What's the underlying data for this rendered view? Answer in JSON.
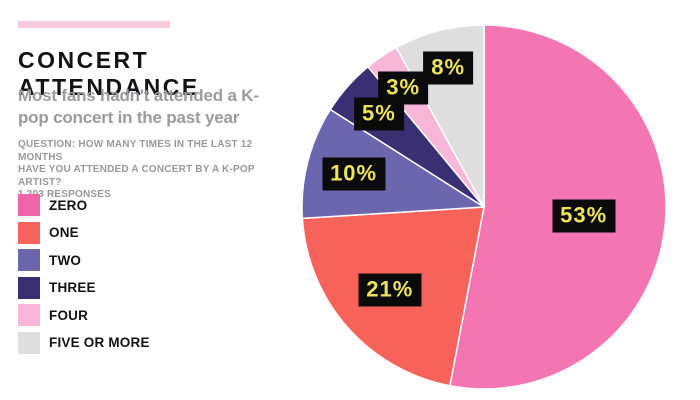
{
  "header": {
    "accent_bar_color": "#F8C8DC",
    "title": "CONCERT ATTENDANCE",
    "subtitle": "Most fans hadn't attended a K-pop concert in the past year",
    "question": "QUESTION: HOW MANY TIMES IN THE LAST 12 MONTHS\nHAVE YOU ATTENDED A CONCERT BY A K-POP ARTIST?\n1,303 RESPONSES"
  },
  "legend": {
    "position": "left",
    "items": [
      {
        "label": "ZERO",
        "color": "#EE66A8"
      },
      {
        "label": "ONE",
        "color": "#F7645C"
      },
      {
        "label": "TWO",
        "color": "#6C66AE"
      },
      {
        "label": "THREE",
        "color": "#3A2F72"
      },
      {
        "label": "FOUR",
        "color": "#F8B7D8"
      },
      {
        "label": "FIVE OR MORE",
        "color": "#DEDEDF"
      }
    ]
  },
  "chart_data": {
    "type": "pie",
    "title": "CONCERT ATTENDANCE",
    "subtitle": "Most fans hadn't attended a K-pop concert in the past year",
    "question": "HOW MANY TIMES IN THE LAST 12 MONTHS HAVE YOU ATTENDED A CONCERT BY A K-POP ARTIST?",
    "responses": "1,303 RESPONSES",
    "categories": [
      "ZERO",
      "ONE",
      "TWO",
      "THREE",
      "FOUR",
      "FIVE OR MORE"
    ],
    "values": [
      53,
      21,
      10,
      5,
      3,
      8
    ],
    "labels": [
      "53%",
      "21%",
      "10%",
      "5%",
      "3%",
      "8%"
    ],
    "colors": [
      "#F375B1",
      "#F7635A",
      "#6C66AE",
      "#3A2F72",
      "#F8B7D8",
      "#DEDEDF"
    ],
    "start_angle_deg": 0,
    "direction": "clockwise",
    "slice_border_color": "#FFFFFF",
    "label_bg": "#0B0B0B",
    "label_color": "#EDE45E",
    "label_radius_frac": [
      0.55,
      0.69,
      0.74,
      0.77,
      0.79,
      0.79
    ],
    "legend_position": "left"
  }
}
